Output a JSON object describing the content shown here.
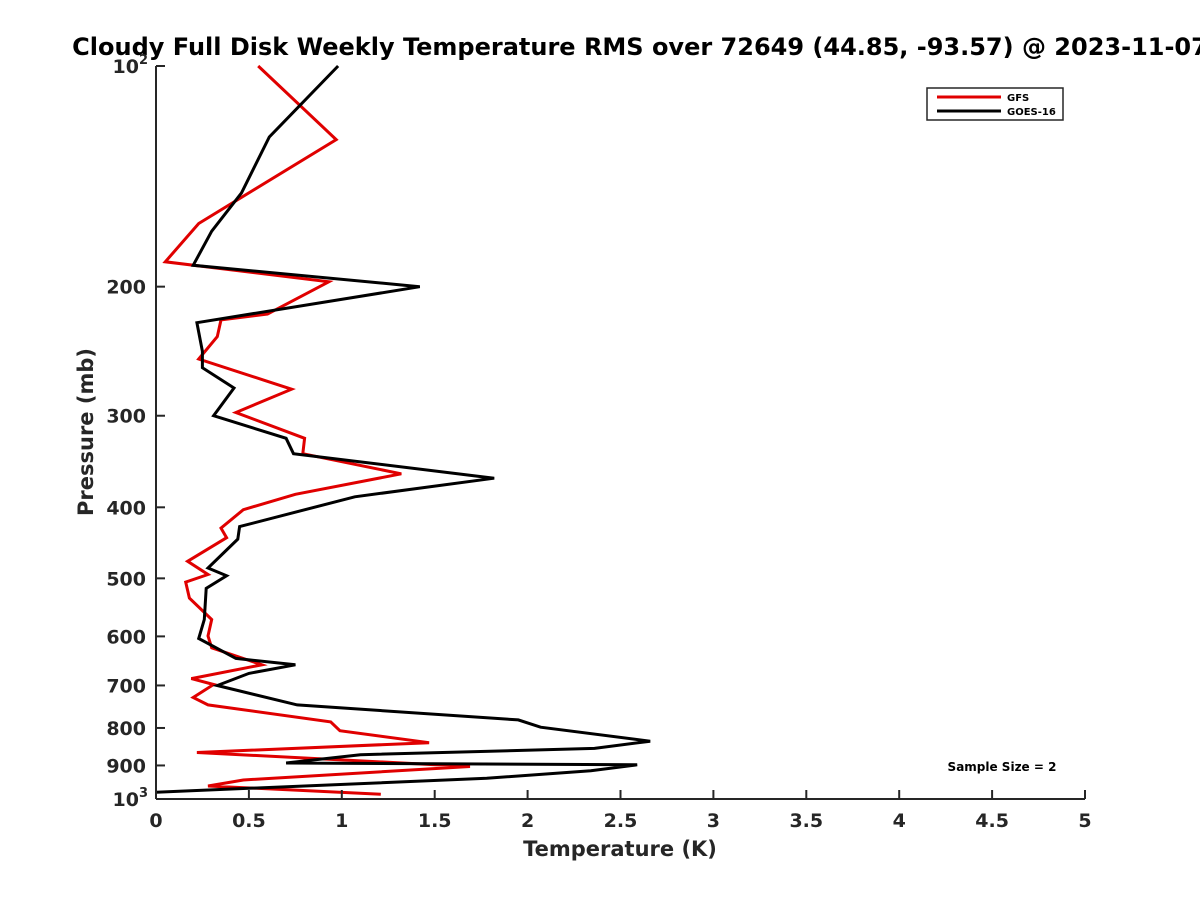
{
  "chart_data": {
    "type": "line",
    "title": "Cloudy Full Disk Weekly Temperature RMS over 72649 (44.85, -93.57) @ 2023-11-07",
    "xlabel": "Temperature (K)",
    "ylabel": "Pressure (mb)",
    "xlim": [
      0,
      5
    ],
    "ylim": [
      100,
      1000
    ],
    "y_scale": "log",
    "y_reversed": true,
    "x_ticks": [
      "0",
      "0.5",
      "1",
      "1.5",
      "2",
      "2.5",
      "3",
      "3.5",
      "4",
      "4.5",
      "5"
    ],
    "y_ticks": [
      {
        "value": 100,
        "base": "10",
        "exp": "2"
      },
      {
        "value": 200,
        "label": "200"
      },
      {
        "value": 300,
        "label": "300"
      },
      {
        "value": 400,
        "label": "400"
      },
      {
        "value": 500,
        "label": "500"
      },
      {
        "value": 600,
        "label": "600"
      },
      {
        "value": 700,
        "label": "700"
      },
      {
        "value": 800,
        "label": "800"
      },
      {
        "value": 900,
        "label": "900"
      },
      {
        "value": 1000,
        "base": "10",
        "exp": "3"
      }
    ],
    "grid": false,
    "legend_position": "top-right",
    "annotation": "Sample Size = 2",
    "series": [
      {
        "name": "GFS",
        "color": "#e00000",
        "x": [
          0.55,
          0.97,
          0.23,
          0.05,
          0.93,
          0.6,
          0.35,
          0.33,
          0.23,
          0.73,
          0.43,
          0.8,
          0.79,
          1.32,
          0.75,
          0.47,
          0.35,
          0.38,
          0.17,
          0.28,
          0.16,
          0.18,
          0.3,
          0.28,
          0.3,
          0.57,
          0.19,
          0.31,
          0.2,
          0.28,
          0.94,
          0.99,
          1.47,
          0.22,
          1.69,
          0.47,
          0.28,
          1.21
        ],
        "y": [
          100,
          126,
          164,
          185,
          197,
          218,
          222,
          234,
          251,
          276,
          297,
          322,
          338,
          360,
          384,
          403,
          427,
          440,
          474,
          494,
          506,
          532,
          569,
          599,
          622,
          656,
          685,
          698,
          727,
          744,
          785,
          807,
          838,
          864,
          903,
          942,
          960,
          985
        ]
      },
      {
        "name": "GOES-16",
        "color": "#000000",
        "x": [
          0.98,
          0.61,
          0.46,
          0.3,
          0.2,
          1.42,
          0.22,
          0.25,
          0.25,
          0.42,
          0.31,
          0.7,
          0.74,
          1.82,
          1.07,
          0.45,
          0.44,
          0.28,
          0.38,
          0.27,
          0.26,
          0.23,
          0.43,
          0.75,
          0.5,
          0.33,
          0.76,
          1.95,
          2.07,
          2.66,
          2.36,
          1.1,
          0.7,
          2.59,
          2.34,
          1.78,
          0.0
        ],
        "y": [
          100,
          125,
          149,
          168,
          187,
          200,
          224,
          245,
          258,
          275,
          300,
          322,
          338,
          365,
          387,
          425,
          442,
          484,
          496,
          516,
          569,
          604,
          643,
          656,
          674,
          700,
          744,
          780,
          798,
          834,
          853,
          870,
          893,
          898,
          915,
          937,
          979
        ]
      }
    ]
  }
}
